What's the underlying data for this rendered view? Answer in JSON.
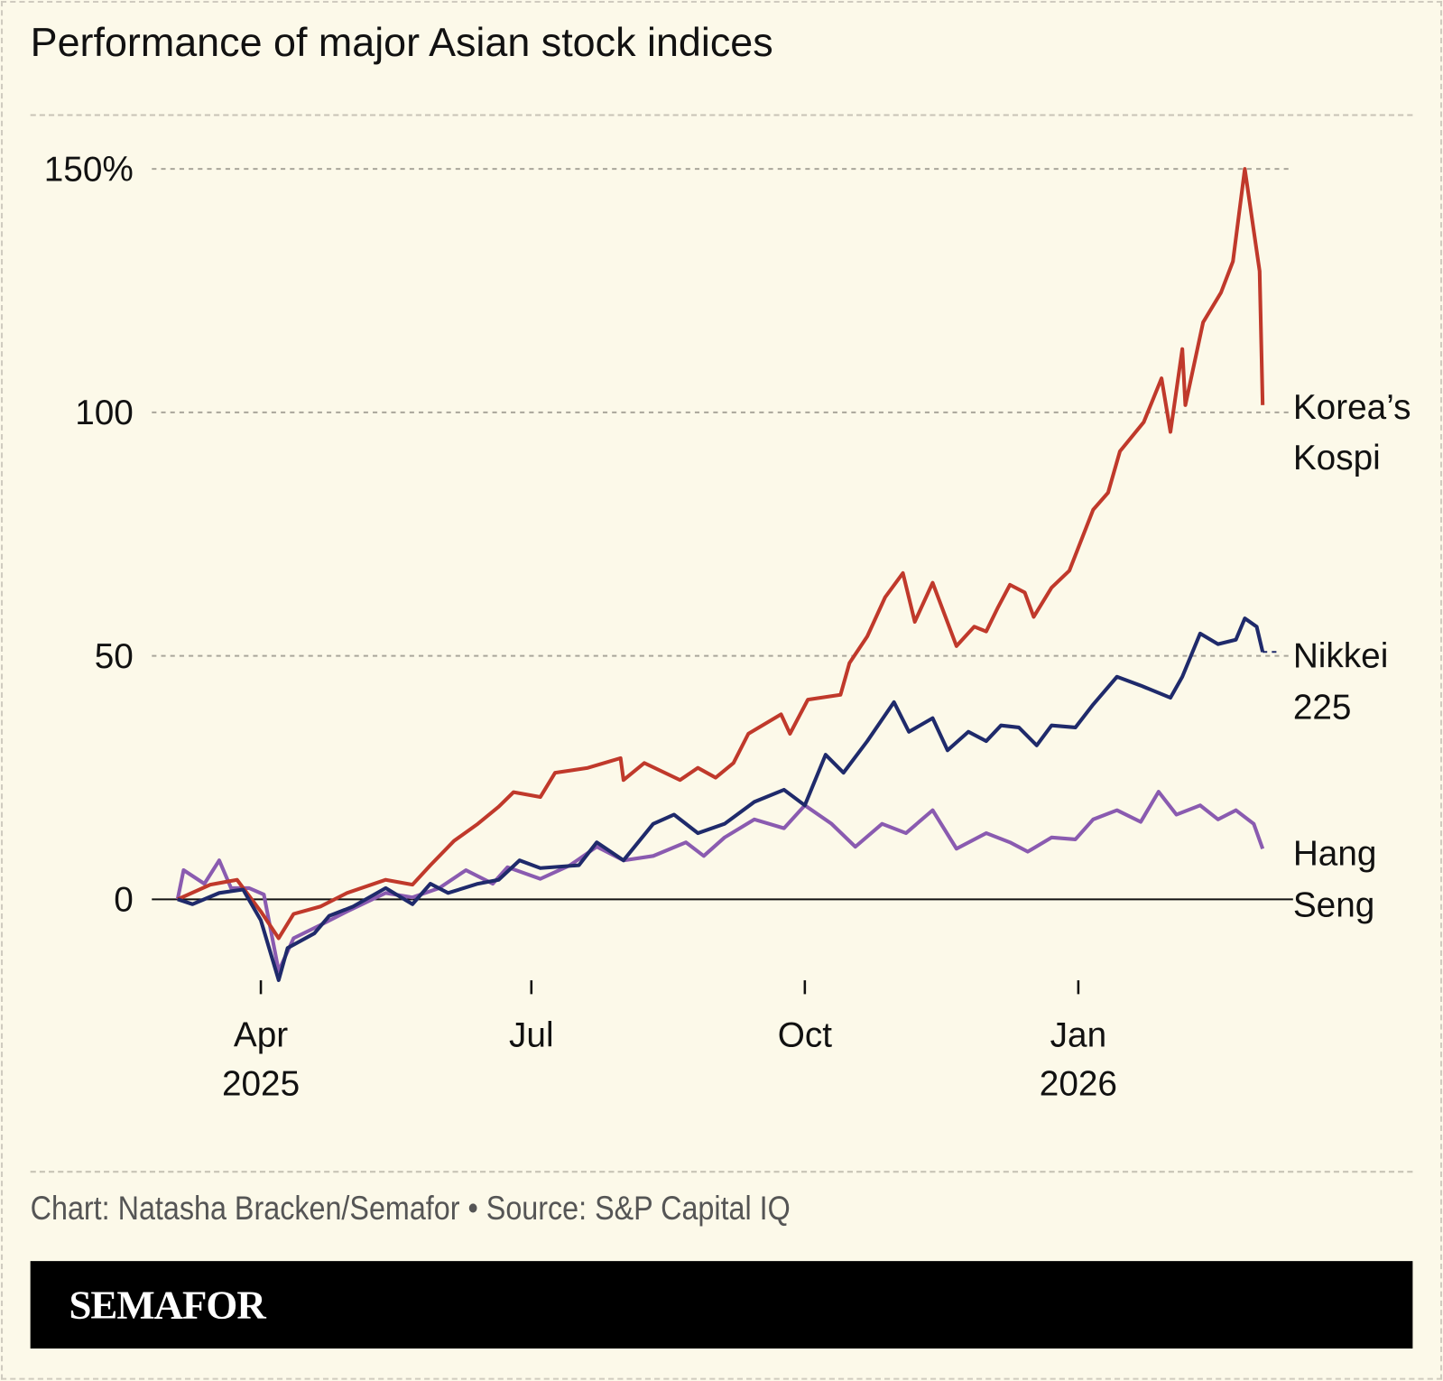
{
  "title": "Performance of major Asian stock indices",
  "credit": "Chart: Natasha Bracken/Semafor • Source: S&P Capital IQ",
  "logo": "SEMAFOR",
  "chart_data": {
    "type": "line",
    "title": "Performance of major Asian stock indices",
    "xlabel": "",
    "ylabel": "",
    "xlim": [
      "2025-03-04",
      "2026-03-04"
    ],
    "ylim": [
      -20,
      150
    ],
    "y_ticks": [
      {
        "value": 150,
        "label": "150%"
      },
      {
        "value": 100,
        "label": "100"
      },
      {
        "value": 50,
        "label": "50"
      },
      {
        "value": 0,
        "label": "0"
      }
    ],
    "x_ticks": [
      {
        "date": "2025-04-01",
        "label": "Apr",
        "sub": "2025"
      },
      {
        "date": "2025-07-01",
        "label": "Jul",
        "sub": ""
      },
      {
        "date": "2025-10-01",
        "label": "Oct",
        "sub": ""
      },
      {
        "date": "2026-01-01",
        "label": "Jan",
        "sub": "2026"
      }
    ],
    "grid": "horizontal dashed",
    "legend": "direct labels right",
    "series": [
      {
        "name": "Korea’s Kospi",
        "label_lines": [
          "Korea’s",
          "Kospi"
        ],
        "color": "#c0392b",
        "points": [
          [
            "2025-03-04",
            0
          ],
          [
            "2025-03-15",
            3
          ],
          [
            "2025-03-24",
            4
          ],
          [
            "2025-04-01",
            -2.5
          ],
          [
            "2025-04-07",
            -8
          ],
          [
            "2025-04-12",
            -3
          ],
          [
            "2025-04-21",
            -1.5
          ],
          [
            "2025-04-30",
            1.3
          ],
          [
            "2025-05-13",
            4
          ],
          [
            "2025-05-22",
            3
          ],
          [
            "2025-05-28",
            7
          ],
          [
            "2025-06-05",
            12
          ],
          [
            "2025-06-13",
            15.5
          ],
          [
            "2025-06-20",
            19
          ],
          [
            "2025-06-25",
            22
          ],
          [
            "2025-07-04",
            21
          ],
          [
            "2025-07-09",
            26
          ],
          [
            "2025-07-20",
            27
          ],
          [
            "2025-07-31",
            29
          ],
          [
            "2025-08-01",
            24.5
          ],
          [
            "2025-08-08",
            28
          ],
          [
            "2025-08-20",
            24.5
          ],
          [
            "2025-08-26",
            27
          ],
          [
            "2025-09-01",
            25
          ],
          [
            "2025-09-07",
            28
          ],
          [
            "2025-09-12",
            34
          ],
          [
            "2025-09-23",
            38
          ],
          [
            "2025-09-26",
            34
          ],
          [
            "2025-10-02",
            41
          ],
          [
            "2025-10-13",
            42
          ],
          [
            "2025-10-16",
            48.5
          ],
          [
            "2025-10-22",
            54
          ],
          [
            "2025-10-28",
            62
          ],
          [
            "2025-11-03",
            67
          ],
          [
            "2025-11-07",
            57
          ],
          [
            "2025-11-13",
            65
          ],
          [
            "2025-11-21",
            52
          ],
          [
            "2025-11-27",
            56
          ],
          [
            "2025-12-01",
            55
          ],
          [
            "2025-12-05",
            60
          ],
          [
            "2025-12-09",
            64.6
          ],
          [
            "2025-12-14",
            63
          ],
          [
            "2025-12-17",
            58
          ],
          [
            "2025-12-23",
            64
          ],
          [
            "2025-12-29",
            67.5
          ],
          [
            "2026-01-06",
            80
          ],
          [
            "2026-01-11",
            83.5
          ],
          [
            "2026-01-15",
            92
          ],
          [
            "2026-01-23",
            98
          ],
          [
            "2026-01-29",
            107
          ],
          [
            "2026-02-01",
            96
          ],
          [
            "2026-02-05",
            113
          ],
          [
            "2026-02-06",
            101.5
          ],
          [
            "2026-02-12",
            118.5
          ],
          [
            "2026-02-18",
            124.6
          ],
          [
            "2026-02-22",
            131
          ],
          [
            "2026-02-26",
            150
          ],
          [
            "2026-03-03",
            129
          ],
          [
            "2026-03-04",
            101.5
          ]
        ]
      },
      {
        "name": "Nikkei 225",
        "label_lines": [
          "Nikkei",
          "225"
        ],
        "color": "#1f2a6b",
        "points": [
          [
            "2025-03-04",
            0
          ],
          [
            "2025-03-09",
            -1
          ],
          [
            "2025-03-18",
            1.3
          ],
          [
            "2025-03-26",
            2
          ],
          [
            "2025-04-01",
            -4.3
          ],
          [
            "2025-04-07",
            -16.6
          ],
          [
            "2025-04-10",
            -10
          ],
          [
            "2025-04-19",
            -7
          ],
          [
            "2025-04-24",
            -3.4
          ],
          [
            "2025-05-02",
            -1.5
          ],
          [
            "2025-05-13",
            2.3
          ],
          [
            "2025-05-22",
            -1
          ],
          [
            "2025-05-28",
            3.2
          ],
          [
            "2025-06-03",
            1.3
          ],
          [
            "2025-06-13",
            3.2
          ],
          [
            "2025-06-20",
            4
          ],
          [
            "2025-06-27",
            8
          ],
          [
            "2025-07-04",
            6.4
          ],
          [
            "2025-07-17",
            7
          ],
          [
            "2025-07-23",
            11.7
          ],
          [
            "2025-08-01",
            8
          ],
          [
            "2025-08-11",
            15.5
          ],
          [
            "2025-08-18",
            17.4
          ],
          [
            "2025-08-26",
            13.6
          ],
          [
            "2025-09-04",
            15.5
          ],
          [
            "2025-09-14",
            20
          ],
          [
            "2025-09-24",
            22.5
          ],
          [
            "2025-10-01",
            19.3
          ],
          [
            "2025-10-08",
            29.7
          ],
          [
            "2025-10-14",
            26
          ],
          [
            "2025-10-22",
            32.5
          ],
          [
            "2025-10-31",
            40.5
          ],
          [
            "2025-11-05",
            34.4
          ],
          [
            "2025-11-13",
            37.2
          ],
          [
            "2025-11-18",
            30.6
          ],
          [
            "2025-11-25",
            34.4
          ],
          [
            "2025-12-01",
            32.5
          ],
          [
            "2025-12-06",
            35.7
          ],
          [
            "2025-12-12",
            35.3
          ],
          [
            "2025-12-18",
            31.6
          ],
          [
            "2025-12-23",
            35.7
          ],
          [
            "2025-12-31",
            35.3
          ],
          [
            "2026-01-06",
            40
          ],
          [
            "2026-01-14",
            45.7
          ],
          [
            "2026-01-22",
            43.9
          ],
          [
            "2026-02-01",
            41.4
          ],
          [
            "2026-02-05",
            45.7
          ],
          [
            "2026-02-11",
            54.6
          ],
          [
            "2026-02-17",
            52.4
          ],
          [
            "2026-02-23",
            53.3
          ],
          [
            "2026-02-26",
            57.7
          ],
          [
            "2026-03-02",
            56
          ],
          [
            "2026-03-04",
            50.8
          ]
        ]
      },
      {
        "name": "Hang Seng",
        "label_lines": [
          "Hang",
          "Seng"
        ],
        "color": "#8a5bb0",
        "points": [
          [
            "2025-03-04",
            0
          ],
          [
            "2025-03-06",
            6
          ],
          [
            "2025-03-13",
            3.2
          ],
          [
            "2025-03-18",
            8
          ],
          [
            "2025-03-22",
            2.3
          ],
          [
            "2025-03-28",
            2.3
          ],
          [
            "2025-04-02",
            1
          ],
          [
            "2025-04-07",
            -14.7
          ],
          [
            "2025-04-12",
            -8
          ],
          [
            "2025-04-21",
            -5.3
          ],
          [
            "2025-04-30",
            -2.5
          ],
          [
            "2025-05-13",
            1.3
          ],
          [
            "2025-05-22",
            0.4
          ],
          [
            "2025-05-31",
            2.3
          ],
          [
            "2025-06-09",
            6
          ],
          [
            "2025-06-18",
            3.2
          ],
          [
            "2025-06-23",
            6.6
          ],
          [
            "2025-07-04",
            4.2
          ],
          [
            "2025-07-14",
            7
          ],
          [
            "2025-07-23",
            10.8
          ],
          [
            "2025-08-01",
            8
          ],
          [
            "2025-08-11",
            8.9
          ],
          [
            "2025-08-22",
            11.7
          ],
          [
            "2025-08-28",
            8.9
          ],
          [
            "2025-09-04",
            12.7
          ],
          [
            "2025-09-14",
            16.4
          ],
          [
            "2025-09-24",
            14.6
          ],
          [
            "2025-10-01",
            19.3
          ],
          [
            "2025-10-10",
            15.5
          ],
          [
            "2025-10-18",
            10.8
          ],
          [
            "2025-10-27",
            15.5
          ],
          [
            "2025-11-04",
            13.6
          ],
          [
            "2025-11-13",
            18.3
          ],
          [
            "2025-11-21",
            10.4
          ],
          [
            "2025-12-01",
            13.6
          ],
          [
            "2025-12-09",
            11.7
          ],
          [
            "2025-12-15",
            9.8
          ],
          [
            "2025-12-23",
            12.7
          ],
          [
            "2025-12-31",
            12.3
          ],
          [
            "2026-01-06",
            16.4
          ],
          [
            "2026-01-14",
            18.3
          ],
          [
            "2026-01-22",
            15.9
          ],
          [
            "2026-01-28",
            22.1
          ],
          [
            "2026-02-03",
            17.4
          ],
          [
            "2026-02-11",
            19.3
          ],
          [
            "2026-02-17",
            16.4
          ],
          [
            "2026-02-23",
            18.3
          ],
          [
            "2026-03-01",
            15.5
          ],
          [
            "2026-03-04",
            10.4
          ]
        ]
      }
    ]
  }
}
